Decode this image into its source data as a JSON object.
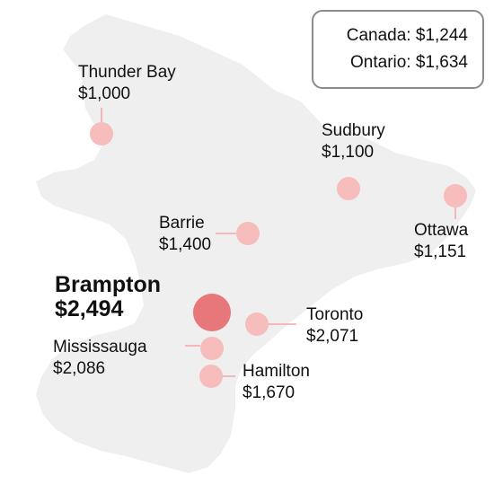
{
  "summary": {
    "canada": {
      "label": "Canada:",
      "value": "$1,244"
    },
    "ontario": {
      "label": "Ontario:",
      "value": "$1,634"
    }
  },
  "colors": {
    "land": "#efefef",
    "marker": "#f7bcbc",
    "marker_highlight": "#e8777b",
    "leader": "#f1a5a8"
  },
  "cities": [
    {
      "id": "thunder-bay",
      "name": "Thunder Bay",
      "value": "$1,000",
      "highlight": false
    },
    {
      "id": "sudbury",
      "name": "Sudbury",
      "value": "$1,100",
      "highlight": false
    },
    {
      "id": "ottawa",
      "name": "Ottawa",
      "value": "$1,151",
      "highlight": false
    },
    {
      "id": "barrie",
      "name": "Barrie",
      "value": "$1,400",
      "highlight": false
    },
    {
      "id": "brampton",
      "name": "Brampton",
      "value": "$2,494",
      "highlight": true
    },
    {
      "id": "toronto",
      "name": "Toronto",
      "value": "$2,071",
      "highlight": false
    },
    {
      "id": "mississauga",
      "name": "Mississauga",
      "value": "$2,086",
      "highlight": false
    },
    {
      "id": "hamilton",
      "name": "Hamilton",
      "value": "$1,670",
      "highlight": false
    }
  ]
}
